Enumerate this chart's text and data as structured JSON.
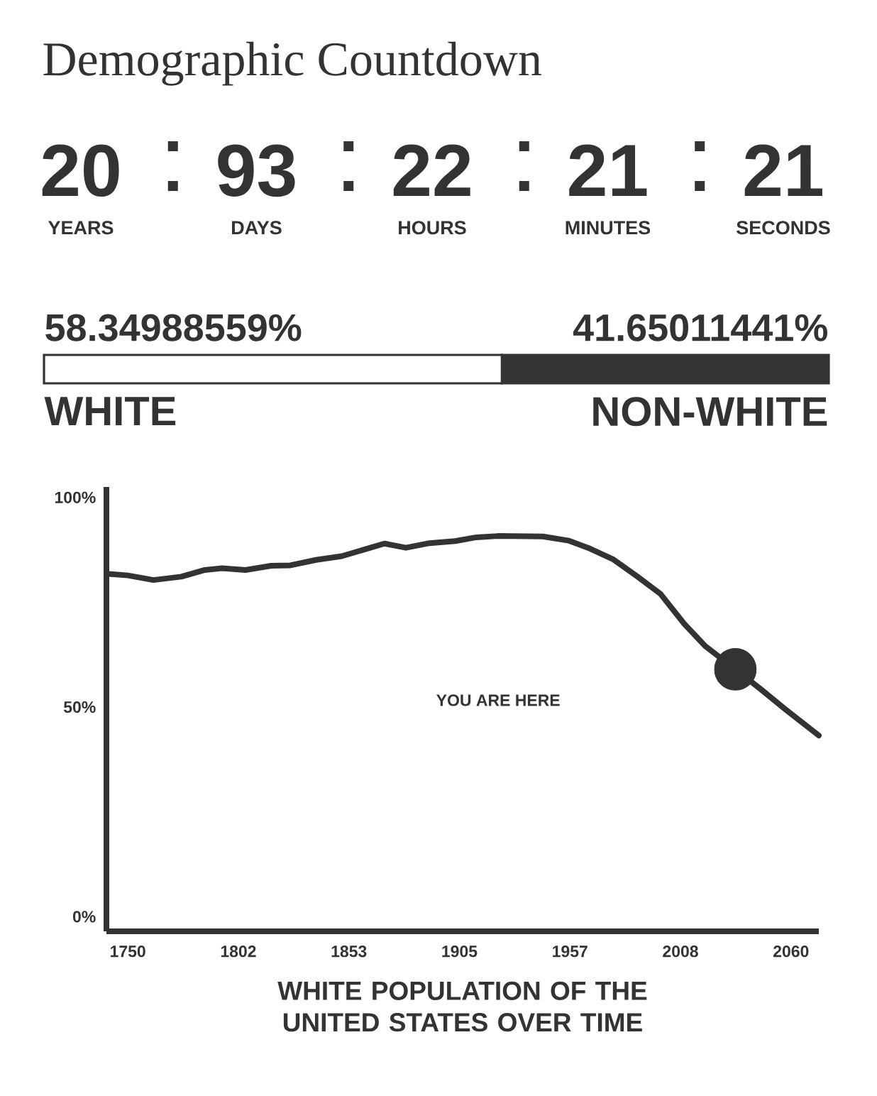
{
  "chart_data": [
    {
      "type": "other",
      "title": "Demographic Countdown",
      "categories": [
        "YEARS",
        "DAYS",
        "HOURS",
        "MINUTES",
        "SECONDS"
      ],
      "values": [
        20,
        93,
        22,
        21,
        21
      ],
      "data_labels": true
    },
    {
      "type": "bar",
      "orientation": "horizontal",
      "stacked": true,
      "categories": [
        null
      ],
      "xlim": [
        0,
        100
      ],
      "tick_labels": false,
      "series": [
        {
          "name": "WHITE",
          "color": "#ffffff",
          "values": [
            58.34988559
          ],
          "value_labels": [
            "58.34988559%"
          ]
        },
        {
          "name": "NON-WHITE",
          "color": "#333333",
          "values": [
            41.65011441
          ],
          "value_labels": [
            "41.65011441%"
          ]
        }
      ]
    },
    {
      "type": "line",
      "xlabel": "WHITE POPULATION OF THE UNITED STATES OVER TIME",
      "xlim": [
        1740,
        2073
      ],
      "ylim": [
        -3.5,
        102.5
      ],
      "xticks": [
        1750,
        {
          "value": 1801.67,
          "label": "1802"
        },
        {
          "value": 1853.33,
          "label": "1853"
        },
        1905,
        {
          "value": 1956.67,
          "label": "1957"
        },
        {
          "value": 2008.33,
          "label": "2008"
        },
        2060
      ],
      "yticks": [
        {
          "value": 0,
          "label": "0%"
        },
        {
          "value": 50,
          "label": "50%"
        },
        {
          "value": 100,
          "label": "100%"
        }
      ],
      "annotations": [
        "YOU ARE HERE"
      ],
      "series": [
        {
          "type": "line",
          "color": "#333333",
          "marker": "none",
          "x": [
            1740,
            1750,
            1762,
            1775,
            1786,
            1794,
            1805,
            1817,
            1826,
            1838,
            1850,
            1860,
            1870,
            1880,
            1891,
            1903,
            1913,
            1923,
            1944,
            1956,
            1966,
            1977,
            1988,
            1999,
            2010,
            2020,
            2034,
            2046,
            2057,
            2066,
            2073
          ],
          "values": [
            81.8,
            81.4,
            80.3,
            81.1,
            82.7,
            83.1,
            82.7,
            83.7,
            83.8,
            85.1,
            86.0,
            87.5,
            89.0,
            88.0,
            89.1,
            89.6,
            90.5,
            90.8,
            90.7,
            89.7,
            87.8,
            85.2,
            81.2,
            77.0,
            69.9,
            64.5,
            59.0,
            54.2,
            49.6,
            46.0,
            43.2
          ]
        },
        {
          "type": "scatter",
          "color": "#333333",
          "marker": "circle",
          "x": [
            2034
          ],
          "values": [
            59.0
          ]
        }
      ]
    }
  ]
}
